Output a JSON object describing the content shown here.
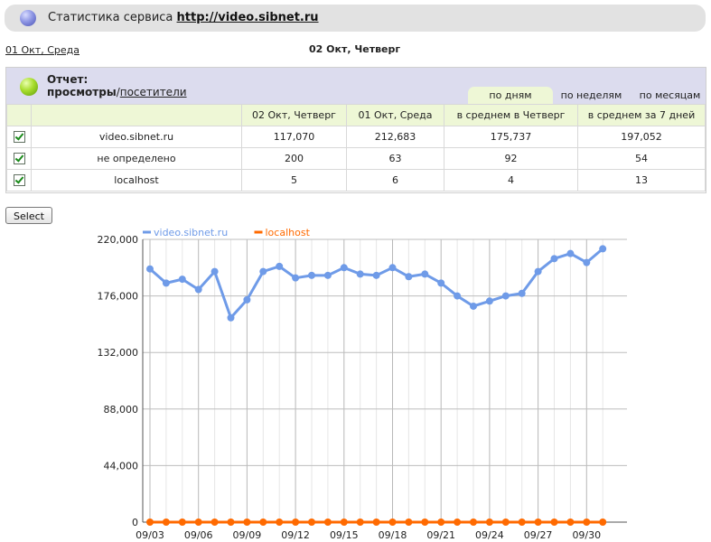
{
  "header": {
    "prefix": "Статистика сервиса",
    "link": "http://video.sibnet.ru"
  },
  "date_nav": {
    "prev": "01 Окт, Среда",
    "current": "02 Окт, Четверг"
  },
  "report": {
    "title": "Отчет:",
    "metric_active": "просмотры",
    "separator": "/",
    "metric_other": "посетители",
    "tabs": [
      "по дням",
      "по неделям",
      "по месяцам"
    ],
    "active_tab": "по дням",
    "columns": [
      "",
      "",
      "02 Окт, Четверг",
      "01 Окт, Среда",
      "в среднем в Четверг",
      "в среднем за 7 дней"
    ],
    "rows": [
      {
        "checked": true,
        "name": "video.sibnet.ru",
        "values": [
          "117,070",
          "212,683",
          "175,737",
          "197,052"
        ]
      },
      {
        "checked": true,
        "name": "не определено",
        "values": [
          "200",
          "63",
          "92",
          "54"
        ]
      },
      {
        "checked": true,
        "name": "localhost",
        "values": [
          "5",
          "6",
          "4",
          "13"
        ]
      }
    ]
  },
  "select_button": "Select",
  "chart_data": {
    "type": "line",
    "ylim": [
      0,
      220000
    ],
    "y_ticks": [
      "0",
      "44,000",
      "88,000",
      "132,000",
      "176,000",
      "220,000"
    ],
    "y_tick_values": [
      0,
      44000,
      88000,
      132000,
      176000,
      220000
    ],
    "x_ticks": [
      "09/03",
      "09/06",
      "09/09",
      "09/12",
      "09/15",
      "09/18",
      "09/21",
      "09/24",
      "09/27",
      "09/30"
    ],
    "x_tick_index": [
      0,
      3,
      6,
      9,
      12,
      15,
      18,
      21,
      24,
      27
    ],
    "grid": true,
    "legend_position": "top-left",
    "series": [
      {
        "name": "video.sibnet.ru",
        "color": "#6f9be8",
        "values": [
          197000,
          186000,
          189000,
          181000,
          195000,
          159000,
          173000,
          195000,
          199000,
          190000,
          192000,
          192000,
          198000,
          193000,
          192000,
          198000,
          191000,
          193000,
          186000,
          176000,
          168000,
          172000,
          176000,
          178000,
          195000,
          205000,
          209000,
          202000,
          212683
        ]
      },
      {
        "name": "localhost",
        "color": "#ff6a00",
        "values": [
          5,
          5,
          5,
          5,
          5,
          5,
          5,
          5,
          5,
          5,
          5,
          5,
          5,
          5,
          5,
          5,
          5,
          5,
          5,
          5,
          5,
          5,
          5,
          5,
          5,
          5,
          5,
          5,
          6
        ]
      }
    ]
  }
}
